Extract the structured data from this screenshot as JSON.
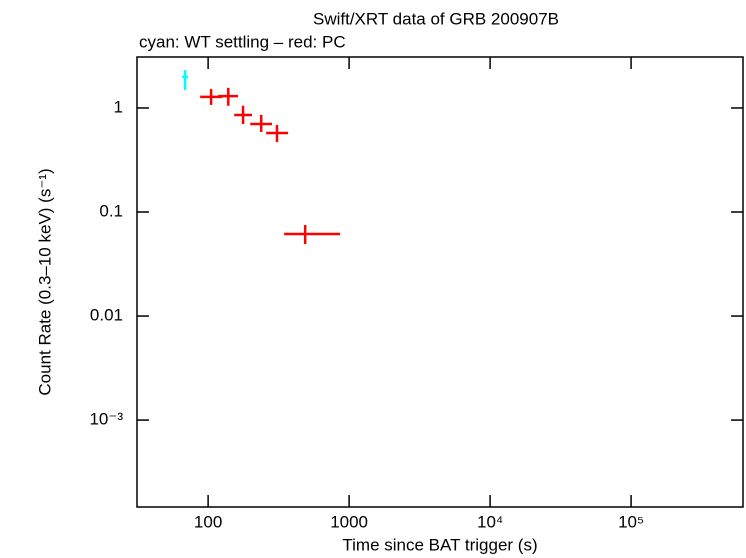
{
  "chart_data": {
    "type": "scatter",
    "title": "Swift/XRT data of GRB 200907B",
    "subtitle": "cyan: WT settling – red: PC",
    "x_label": "Time since BAT trigger (s)",
    "y_label": "Count Rate (0.3–10 keV) (s⁻¹)",
    "x_log": true,
    "y_log": true,
    "xlim": [
      31.3,
      622000
    ],
    "ylim": [
      0.000146,
      3.09
    ],
    "xticks": [
      100,
      1000,
      {
        "value": 10000,
        "label": "10⁴"
      },
      {
        "value": 100000,
        "label": "10⁵"
      }
    ],
    "yticks": [
      1,
      0.1,
      0.01,
      {
        "value": 0.001,
        "label": "10⁻³"
      }
    ],
    "series": [
      {
        "color": "#00ffff",
        "x": [
          68.7
        ],
        "values": [
          1.99
        ],
        "x_low": [
          65.4
        ],
        "x_high": [
          72.2
        ],
        "y_low": [
          1.49
        ],
        "y_high": [
          2.32
        ]
      },
      {
        "color": "#ff0000",
        "x": [
          105,
          139,
          177,
          238,
          308,
          488
        ],
        "values": [
          1.28,
          1.3,
          0.857,
          0.702,
          0.575,
          0.0614
        ],
        "x_low": [
          87.8,
          118,
          153,
          199,
          258,
          346
        ],
        "x_high": [
          126,
          163,
          205,
          284,
          369,
          863
        ],
        "y_low": [
          1.07,
          1.05,
          0.7,
          0.588,
          0.471,
          0.0492
        ],
        "y_high": [
          1.52,
          1.56,
          1.05,
          0.857,
          0.686,
          0.075
        ]
      }
    ]
  }
}
